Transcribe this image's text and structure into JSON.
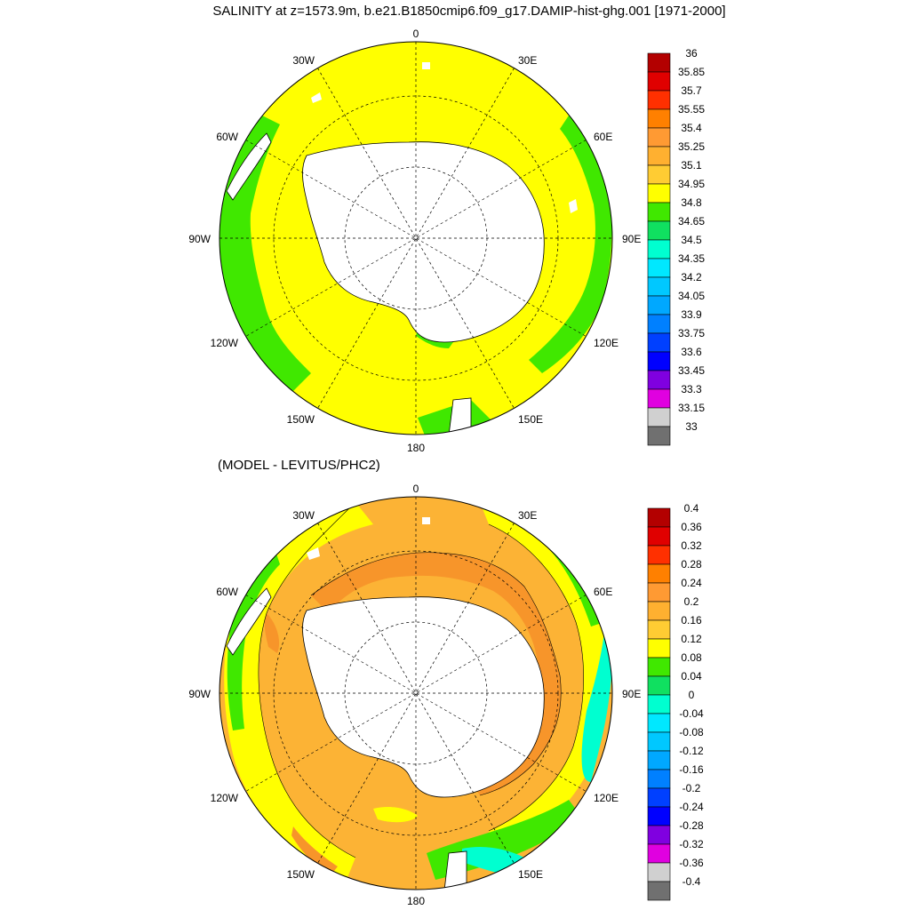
{
  "title": "SALINITY at z=1573.9m, b.e21.B1850cmip6.f09_g17.DAMIP-hist-ghg.001 [1971-2000]",
  "subtitle": "(MODEL - LEVITUS/PHC2)",
  "longitude_labels": {
    "top": "0",
    "bottom": "180",
    "left": "90W",
    "right": "90E",
    "l30w": "30W",
    "r30e": "30E",
    "l60w": "60W",
    "r60e": "60E",
    "l120w": "120W",
    "r120e": "120E",
    "l150w": "150W",
    "r150e": "150E"
  },
  "colors": {
    "land": "#ffffff",
    "coast": "#000000",
    "grid": "#000000"
  },
  "top_map": {
    "colorbar_labels": [
      "36",
      "35.85",
      "35.7",
      "35.55",
      "35.4",
      "35.25",
      "35.1",
      "34.95",
      "34.8",
      "34.65",
      "34.5",
      "34.35",
      "34.2",
      "34.05",
      "33.9",
      "33.75",
      "33.6",
      "33.45",
      "33.3",
      "33.15",
      "33"
    ],
    "colorbar_colors": [
      "#b30000",
      "#e00000",
      "#ff3000",
      "#ff8000",
      "#ff9a33",
      "#ffb030",
      "#ffcc33",
      "#ffff00",
      "#40e800",
      "#10e060",
      "#00ffd0",
      "#00e8ff",
      "#00c8ff",
      "#00a8ff",
      "#0080ff",
      "#0040ff",
      "#0000ff",
      "#8000e0",
      "#e000e0",
      "#d0d0d0",
      "#707070"
    ],
    "dominant_color": "#ffff00",
    "edge_color": "#40e800"
  },
  "bottom_map": {
    "colorbar_labels": [
      "0.4",
      "0.36",
      "0.32",
      "0.28",
      "0.24",
      "0.2",
      "0.16",
      "0.12",
      "0.08",
      "0.04",
      "0",
      "-0.04",
      "-0.08",
      "-0.12",
      "-0.16",
      "-0.2",
      "-0.24",
      "-0.28",
      "-0.32",
      "-0.36",
      "-0.4"
    ],
    "colorbar_colors": [
      "#b30000",
      "#e00000",
      "#ff3000",
      "#ff8000",
      "#ff9a33",
      "#ffb030",
      "#ffcc33",
      "#ffff00",
      "#40e800",
      "#10e060",
      "#00ffd0",
      "#00e8ff",
      "#00c8ff",
      "#00a8ff",
      "#0080ff",
      "#0040ff",
      "#0000ff",
      "#8000e0",
      "#e000e0",
      "#d0d0d0",
      "#707070"
    ],
    "dominant_color": "#fcb335",
    "inner_color": "#f7952a",
    "edge_color": "#ffff00"
  }
}
